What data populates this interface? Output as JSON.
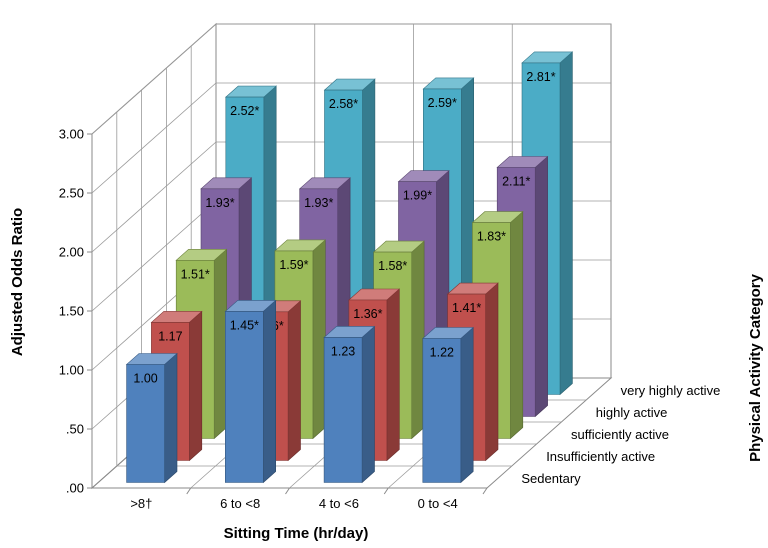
{
  "chart_data": {
    "type": "bar",
    "subtype": "3d-clustered-bar",
    "title": "",
    "xlabel": "Sitting Time (hr/day)",
    "ylabel": "Adjusted Odds Ratio",
    "zlabel": "Physical Activity Category",
    "categories": [
      ">8†",
      "6 to <8",
      "4 to <6",
      "0 to <4"
    ],
    "ylim": [
      0,
      3.0
    ],
    "y_ticks": [
      ".00",
      ".50",
      "1.00",
      "1.50",
      "2.00",
      "2.50",
      "3.00"
    ],
    "y_tick_values": [
      0,
      0.5,
      1.0,
      1.5,
      2.0,
      2.5,
      3.0
    ],
    "grid": true,
    "series": [
      {
        "name": "Sedentary",
        "color": "#4f81bd",
        "values": [
          1.0,
          1.45,
          1.23,
          1.22
        ],
        "labels": [
          "1.00",
          "1.45*",
          "1.23",
          "1.22"
        ]
      },
      {
        "name": "Insufficiently active",
        "color": "#c0504d",
        "values": [
          1.17,
          1.26,
          1.36,
          1.41
        ],
        "labels": [
          "1.17",
          "1.26*",
          "1.36*",
          "1.41*"
        ]
      },
      {
        "name": "sufficiently active",
        "color": "#9bbb59",
        "values": [
          1.51,
          1.59,
          1.58,
          1.83
        ],
        "labels": [
          "1.51*",
          "1.59*",
          "1.58*",
          "1.83*"
        ]
      },
      {
        "name": "highly active",
        "color": "#8064a2",
        "values": [
          1.93,
          1.93,
          1.99,
          2.11
        ],
        "labels": [
          "1.93*",
          "1.93*",
          "1.99*",
          "2.11*"
        ]
      },
      {
        "name": "very highly active",
        "color": "#4bacc6",
        "values": [
          2.52,
          2.58,
          2.59,
          2.81
        ],
        "labels": [
          "2.52*",
          "2.58*",
          "2.59*",
          "2.81*"
        ]
      }
    ]
  }
}
